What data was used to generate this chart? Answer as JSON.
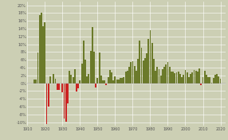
{
  "background_color": "#cccfb4",
  "bar_color_positive": "#6b7a2a",
  "bar_color_negative": "#cc2222",
  "grid_color": "#ffffff",
  "tick_color": "#555555",
  "ylim": [
    -11,
    21
  ],
  "yticks": [
    -10,
    -8,
    -6,
    -4,
    -2,
    0,
    2,
    4,
    6,
    8,
    10,
    12,
    14,
    16,
    18,
    20
  ],
  "ytick_labels": [
    "-10%",
    "-8%",
    "-6%",
    "-4%",
    "-2%",
    "0%",
    "2%",
    "4%",
    "6%",
    "8%",
    "10%",
    "12%",
    "14%",
    "16%",
    "18%",
    "20%"
  ],
  "xticks": [
    1910,
    1920,
    1930,
    1940,
    1950,
    1960,
    1970,
    1980,
    1990,
    2000,
    2010,
    2020
  ],
  "xlim": [
    1910,
    2023
  ],
  "data": [
    [
      1914,
      1.0
    ],
    [
      1915,
      1.0
    ],
    [
      1916,
      7.9
    ],
    [
      1917,
      17.4
    ],
    [
      1918,
      18.0
    ],
    [
      1919,
      14.6
    ],
    [
      1920,
      15.6
    ],
    [
      1921,
      -10.5
    ],
    [
      1922,
      -6.1
    ],
    [
      1923,
      1.8
    ],
    [
      1924,
      0.0
    ],
    [
      1925,
      2.3
    ],
    [
      1926,
      1.1
    ],
    [
      1927,
      -1.7
    ],
    [
      1928,
      -1.7
    ],
    [
      1929,
      0.0
    ],
    [
      1930,
      -2.3
    ],
    [
      1931,
      -9.0
    ],
    [
      1932,
      -9.9
    ],
    [
      1933,
      -5.1
    ],
    [
      1934,
      3.1
    ],
    [
      1935,
      2.2
    ],
    [
      1936,
      1.5
    ],
    [
      1937,
      3.6
    ],
    [
      1938,
      -2.1
    ],
    [
      1939,
      -1.4
    ],
    [
      1940,
      0.7
    ],
    [
      1941,
      5.0
    ],
    [
      1942,
      10.9
    ],
    [
      1943,
      6.1
    ],
    [
      1944,
      1.7
    ],
    [
      1945,
      2.3
    ],
    [
      1946,
      8.3
    ],
    [
      1947,
      14.4
    ],
    [
      1948,
      8.1
    ],
    [
      1949,
      -1.2
    ],
    [
      1950,
      1.3
    ],
    [
      1951,
      7.9
    ],
    [
      1952,
      1.9
    ],
    [
      1953,
      0.8
    ],
    [
      1954,
      0.7
    ],
    [
      1955,
      -0.4
    ],
    [
      1956,
      1.5
    ],
    [
      1957,
      3.3
    ],
    [
      1958,
      2.8
    ],
    [
      1959,
      0.7
    ],
    [
      1960,
      1.7
    ],
    [
      1961,
      1.0
    ],
    [
      1962,
      1.0
    ],
    [
      1963,
      1.3
    ],
    [
      1964,
      1.3
    ],
    [
      1965,
      1.6
    ],
    [
      1966,
      2.9
    ],
    [
      1967,
      3.1
    ],
    [
      1968,
      4.2
    ],
    [
      1969,
      5.5
    ],
    [
      1970,
      5.7
    ],
    [
      1971,
      4.4
    ],
    [
      1972,
      3.2
    ],
    [
      1973,
      6.2
    ],
    [
      1974,
      11.0
    ],
    [
      1975,
      9.1
    ],
    [
      1976,
      5.8
    ],
    [
      1977,
      6.5
    ],
    [
      1978,
      7.6
    ],
    [
      1979,
      11.3
    ],
    [
      1980,
      13.5
    ],
    [
      1981,
      10.3
    ],
    [
      1982,
      6.2
    ],
    [
      1983,
      3.2
    ],
    [
      1984,
      4.3
    ],
    [
      1985,
      3.6
    ],
    [
      1986,
      1.9
    ],
    [
      1987,
      3.6
    ],
    [
      1988,
      4.1
    ],
    [
      1989,
      4.8
    ],
    [
      1990,
      5.4
    ],
    [
      1991,
      4.2
    ],
    [
      1992,
      3.0
    ],
    [
      1993,
      3.0
    ],
    [
      1994,
      2.6
    ],
    [
      1995,
      2.8
    ],
    [
      1996,
      3.0
    ],
    [
      1997,
      2.3
    ],
    [
      1998,
      1.6
    ],
    [
      1999,
      2.2
    ],
    [
      2000,
      3.4
    ],
    [
      2001,
      2.8
    ],
    [
      2002,
      1.6
    ],
    [
      2003,
      2.3
    ],
    [
      2004,
      2.7
    ],
    [
      2005,
      3.4
    ],
    [
      2006,
      3.2
    ],
    [
      2007,
      2.9
    ],
    [
      2008,
      3.8
    ],
    [
      2009,
      -0.4
    ],
    [
      2010,
      1.6
    ],
    [
      2011,
      3.2
    ],
    [
      2012,
      2.1
    ],
    [
      2013,
      1.5
    ],
    [
      2014,
      1.6
    ],
    [
      2015,
      0.1
    ],
    [
      2016,
      1.3
    ],
    [
      2017,
      2.1
    ],
    [
      2018,
      2.4
    ],
    [
      2019,
      1.8
    ],
    [
      2020,
      1.2
    ]
  ]
}
